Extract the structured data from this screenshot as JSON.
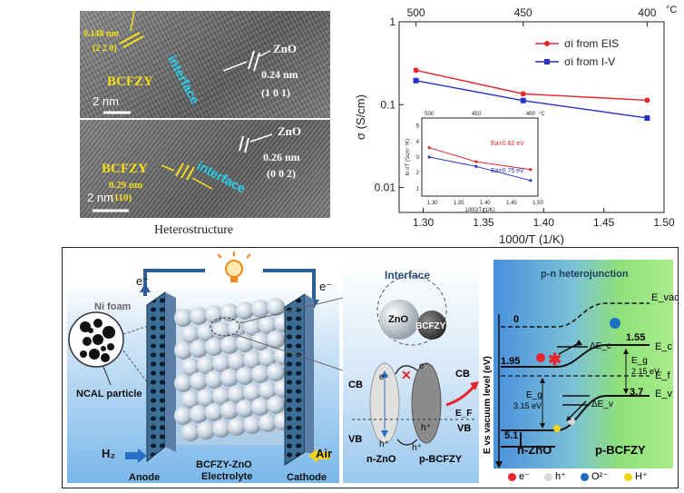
{
  "tem_top": {
    "d1": "0.148 nm",
    "plane1": "(2 2 0)",
    "phase1": "BCFZY",
    "interface": "interface",
    "phase2": "ZnO",
    "d2": "0.24 nm",
    "plane2": "(1 0 1)",
    "scale": "2 nm"
  },
  "tem_bottom": {
    "phase2": "ZnO",
    "d2": "0.26 nm",
    "plane2": "(0 0 2)",
    "phase1": "BCFZY",
    "d1": "0.29 nm",
    "plane1": "(110)",
    "interface": "interface",
    "scale": "2 nm"
  },
  "tem_caption": "Heterostructure",
  "chart_data": {
    "type": "line",
    "xlabel": "1000/T (1/K)",
    "ylabel": "σ (S/cm)",
    "xlim": [
      1.28,
      1.5
    ],
    "ylim_log": [
      0.005,
      1
    ],
    "yscale": "log",
    "xticks": [
      "1.30",
      "1.35",
      "1.40",
      "1.45",
      "1.50"
    ],
    "yticks": [
      "1",
      "0.1",
      "0.01"
    ],
    "top_ticks": [
      "500",
      "450",
      "400"
    ],
    "top_unit": "°C",
    "legend_position": "top-right",
    "series": [
      {
        "name": "σi from EIS",
        "color": "#e8242c",
        "x": [
          1.294,
          1.383,
          1.486
        ],
        "y": [
          0.26,
          0.135,
          0.113
        ]
      },
      {
        "name": "σi from I-V",
        "color": "#2531c9",
        "x": [
          1.294,
          1.383,
          1.486
        ],
        "y": [
          0.195,
          0.112,
          0.069
        ]
      }
    ],
    "inset": {
      "xlabel": "1000/T (1/K)",
      "ylabel": "ln σT (Scm⁻¹K)",
      "xticks": [
        "1.30",
        "1.35",
        "1.40",
        "1.45",
        "1.50"
      ],
      "yticks": [
        "5",
        "4",
        "3",
        "2",
        "1"
      ],
      "top_ticks": [
        "500",
        "450",
        "400"
      ],
      "top_unit": "°C",
      "series": [
        {
          "color": "#e8242c",
          "x": [
            1.294,
            1.383,
            1.486
          ],
          "y": [
            3.6,
            2.7,
            2.2
          ],
          "annotation": "Ea=0.62 eV"
        },
        {
          "color": "#2531c9",
          "x": [
            1.294,
            1.383,
            1.486
          ],
          "y": [
            3.0,
            2.4,
            1.5
          ],
          "annotation": "Ea=0.75 eV"
        }
      ]
    }
  },
  "cell": {
    "ni_foam": "Ni foam",
    "ncal": "NCAL particle",
    "h2": "H₂",
    "air": "Air",
    "anode": "Anode",
    "electrolyte_line1": "BCFZY-ZnO",
    "electrolyte_line2": "Electrolyte",
    "cathode": "Cathode",
    "e_left": "e⁻",
    "e_right": "e⁻"
  },
  "interface_panel": {
    "title": "Interface",
    "zno": "ZnO",
    "bcfzy": "BCFZY",
    "cb_left": "CB",
    "vb_left": "VB",
    "cb_right": "CB",
    "vb_right": "VB",
    "ef": "E_F",
    "n_zno": "n-ZnO",
    "p_bcfzy": "p-BCFZY",
    "e": "e⁻",
    "h": "h⁺"
  },
  "band_panel": {
    "title": "p-n heterojunction",
    "evac": "E_vac",
    "ec": "E_c",
    "ef": "E_f",
    "ev": "E_v",
    "ylabel": "E vs vacuum level (eV)",
    "v0": "0",
    "v155": "1.55",
    "v195": "1.95",
    "v37": "3.7",
    "v51": "5.1",
    "eg_right": "E_g",
    "eg_right_val": "2.15 eV",
    "eg_left": "E_g",
    "eg_left_val": "3.15 eV",
    "dec": "ΔE_c",
    "dev": "ΔE_v",
    "n_zno": "n-ZnO",
    "p_bcfzy": "p-BCFZY"
  },
  "legend": {
    "e": "e⁻",
    "h": "h⁺",
    "o": "O²⁻",
    "hplus": "H⁺",
    "colors": {
      "e": "#e8242c",
      "h": "#d8d8d8",
      "o": "#1a6fc2",
      "hplus": "#f2d31b"
    }
  }
}
